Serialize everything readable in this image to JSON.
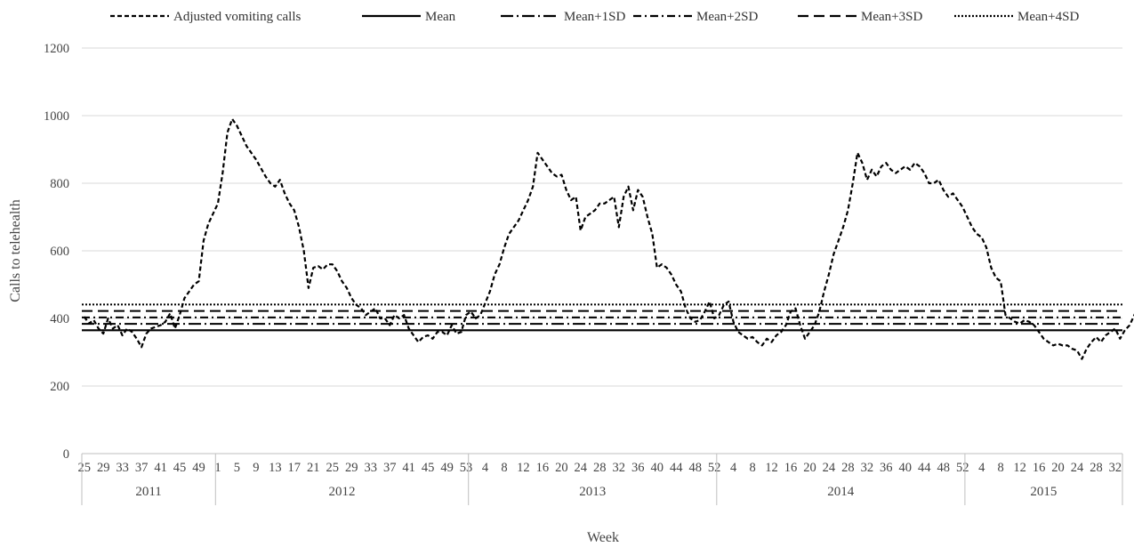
{
  "chart_data": {
    "type": "line",
    "title": "",
    "xlabel": "Week",
    "ylabel": "Calls to telehealth",
    "ylim": [
      0,
      1200
    ],
    "yticks": [
      0,
      200,
      400,
      600,
      800,
      1000,
      1200
    ],
    "grid": "horizontal",
    "legend_position": "top",
    "week_tick_labels": [
      "25",
      "29",
      "33",
      "37",
      "41",
      "45",
      "49",
      "1",
      "5",
      "9",
      "13",
      "17",
      "21",
      "25",
      "29",
      "33",
      "37",
      "41",
      "45",
      "49",
      "53",
      "4",
      "8",
      "12",
      "16",
      "20",
      "24",
      "28",
      "32",
      "36",
      "40",
      "44",
      "48",
      "52",
      "4",
      "8",
      "12",
      "16",
      "20",
      "24",
      "28",
      "32",
      "36",
      "40",
      "44",
      "48",
      "52",
      "4",
      "8",
      "12",
      "16",
      "20",
      "24",
      "28",
      "32"
    ],
    "years": [
      {
        "label": "2011",
        "weeks": 28
      },
      {
        "label": "2012",
        "weeks": 53
      },
      {
        "label": "2013",
        "weeks": 52
      },
      {
        "label": "2014",
        "weeks": 52
      },
      {
        "label": "2015",
        "weeks": 33
      }
    ],
    "series": [
      {
        "name": "Adjusted vomiting calls",
        "style": "short-dash",
        "values": [
          405,
          385,
          395,
          370,
          355,
          400,
          370,
          380,
          350,
          370,
          360,
          340,
          315,
          355,
          370,
          375,
          380,
          390,
          415,
          370,
          410,
          460,
          480,
          500,
          510,
          630,
          680,
          710,
          740,
          830,
          950,
          990,
          970,
          940,
          910,
          890,
          870,
          845,
          820,
          800,
          790,
          810,
          770,
          740,
          720,
          670,
          600,
          490,
          550,
          555,
          545,
          560,
          560,
          540,
          510,
          490,
          460,
          440,
          430,
          410,
          420,
          430,
          400,
          400,
          380,
          410,
          400,
          410,
          370,
          350,
          330,
          345,
          350,
          340,
          360,
          360,
          350,
          380,
          355,
          360,
          410,
          420,
          400,
          410,
          445,
          480,
          530,
          560,
          610,
          650,
          670,
          690,
          720,
          750,
          790,
          890,
          870,
          850,
          830,
          820,
          825,
          780,
          750,
          760,
          660,
          700,
          710,
          720,
          740,
          740,
          750,
          760,
          670,
          760,
          790,
          720,
          780,
          760,
          700,
          650,
          550,
          560,
          550,
          530,
          500,
          480,
          430,
          400,
          390,
          395,
          420,
          450,
          400,
          410,
          440,
          450,
          390,
          360,
          350,
          340,
          345,
          330,
          320,
          340,
          330,
          350,
          360,
          380,
          420,
          430,
          380,
          340,
          360,
          380,
          420,
          480,
          530,
          590,
          630,
          670,
          720,
          800,
          890,
          860,
          810,
          840,
          820,
          850,
          860,
          840,
          830,
          840,
          850,
          840,
          860,
          850,
          830,
          800,
          800,
          810,
          780,
          760,
          770,
          750,
          730,
          700,
          670,
          650,
          640,
          610,
          550,
          520,
          510,
          410,
          400,
          390,
          385,
          395,
          390,
          380,
          360,
          340,
          330,
          320,
          325,
          320,
          320,
          310,
          305,
          280,
          310,
          330,
          345,
          330,
          350,
          360,
          370,
          340,
          365,
          380,
          410,
          440,
          460,
          470,
          490,
          520,
          560,
          590,
          650,
          700,
          710,
          710,
          710,
          690,
          720,
          750,
          790,
          800,
          780,
          770,
          790,
          810,
          860,
          840,
          820,
          800,
          780,
          790,
          800,
          790,
          740,
          690,
          670,
          700,
          710,
          690,
          580,
          560,
          540,
          510,
          510,
          460,
          430,
          400,
          400,
          400,
          390,
          380,
          310,
          320,
          330,
          340,
          345,
          340,
          330,
          345,
          340,
          325
        ]
      },
      {
        "name": "Mean",
        "style": "solid",
        "value": 365
      },
      {
        "name": "Mean+1SD",
        "style": "long-dash-dot",
        "value": 384
      },
      {
        "name": "Mean+2SD",
        "style": "dash-dot",
        "value": 403
      },
      {
        "name": "Mean+3SD",
        "style": "long-dash",
        "value": 422
      },
      {
        "name": "Mean+4SD",
        "style": "dotted",
        "value": 441
      }
    ]
  }
}
